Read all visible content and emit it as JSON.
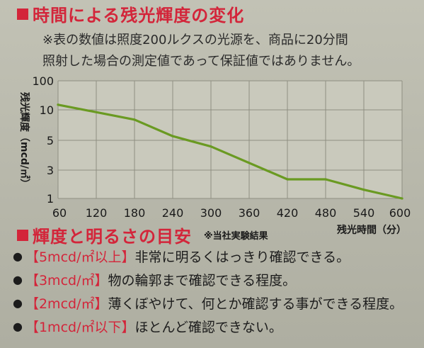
{
  "header": {
    "title": "時間による残光輝度の変化",
    "note_line1": "※表の数値は照度200ルクスの光源を、商品に20分間",
    "note_line2": "照射した場合の測定値であって保証値ではありません。"
  },
  "chart_data": {
    "type": "line",
    "x_label": "残光時間（分）",
    "y_label": "残光輝度（mcd/㎡）",
    "x_ticks": [
      "60",
      "120",
      "180",
      "240",
      "300",
      "360",
      "420",
      "480",
      "540",
      "600"
    ],
    "y_ticks": [
      "100",
      "10",
      "5",
      "3",
      "1"
    ],
    "y_scale": "log",
    "xlim": [
      60,
      600
    ],
    "grid": true,
    "line_color": "#6a9a22",
    "x": [
      60,
      180,
      240,
      300,
      420,
      480,
      540,
      600
    ],
    "y": [
      15,
      8,
      5.5,
      4.5,
      2.1,
      2.1,
      1.4,
      1.0
    ]
  },
  "guide": {
    "title": "輝度と明るさの目安",
    "source_note": "※当社実験結果",
    "items": [
      {
        "bullet": "●",
        "label": "【5mcd/㎡以上】",
        "text": "非常に明るくはっきり確認できる。"
      },
      {
        "bullet": "●",
        "label": "【3mcd/㎡】",
        "text": "物の輪郭まで確認できる程度。"
      },
      {
        "bullet": "●",
        "label": "【2mcd/㎡】",
        "text": "薄くぼやけて、何とか確認する事ができる程度。"
      },
      {
        "bullet": "●",
        "label": "【1mcd/㎡以下】",
        "text": "ほとんど確認できない。"
      }
    ]
  }
}
